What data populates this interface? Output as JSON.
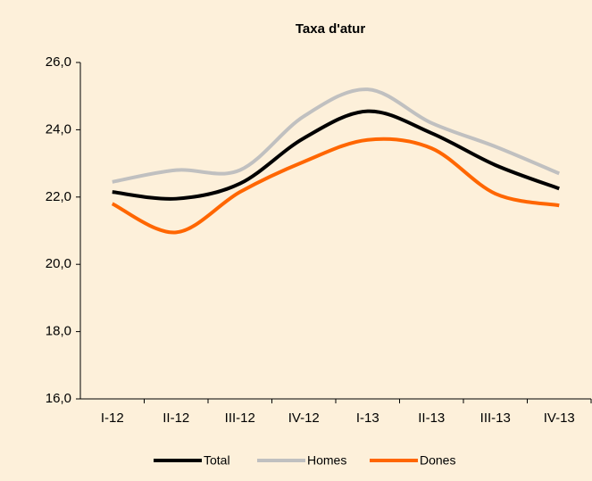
{
  "chart_data": {
    "type": "line",
    "title": "Taxa d'atur",
    "categories": [
      "I-12",
      "II-12",
      "III-12",
      "IV-12",
      "I-13",
      "II-13",
      "III-13",
      "IV-13"
    ],
    "series": [
      {
        "name": "Total",
        "color": "#000000",
        "values": [
          22.15,
          21.95,
          22.4,
          23.75,
          24.55,
          23.9,
          22.95,
          22.25
        ]
      },
      {
        "name": "Homes",
        "color": "#c0c0c0",
        "values": [
          22.45,
          22.8,
          22.8,
          24.4,
          25.2,
          24.2,
          23.5,
          22.7
        ]
      },
      {
        "name": "Dones",
        "color": "#ff6600",
        "values": [
          21.8,
          20.95,
          22.15,
          23.05,
          23.7,
          23.45,
          22.1,
          21.75
        ]
      }
    ],
    "ylim": [
      16,
      26
    ],
    "yticks": [
      {
        "value": 16,
        "label": "16,0"
      },
      {
        "value": 18,
        "label": "18,0"
      },
      {
        "value": 20,
        "label": "20,0"
      },
      {
        "value": 22,
        "label": "22,0"
      },
      {
        "value": 24,
        "label": "24,0"
      },
      {
        "value": 26,
        "label": "26,0"
      }
    ],
    "grid": false,
    "legend": "bottom"
  }
}
